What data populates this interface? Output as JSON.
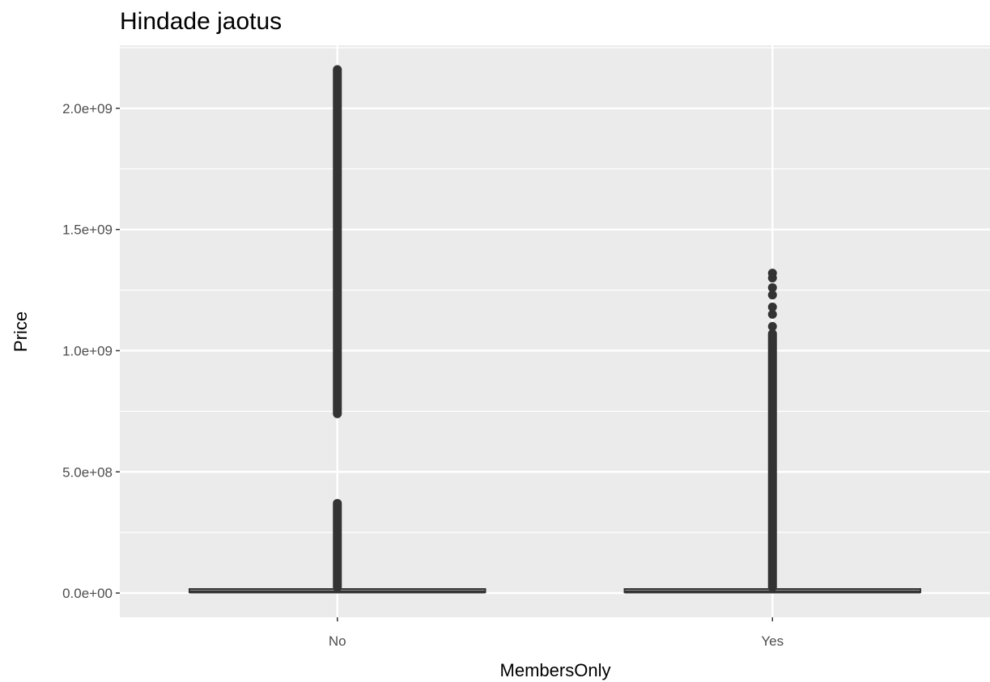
{
  "chart_data": {
    "type": "boxplot",
    "title": "Hindade jaotus",
    "xlabel": "MembersOnly",
    "ylabel": "Price",
    "categories": [
      "No",
      "Yes"
    ],
    "y_ticks": [
      {
        "value": 0,
        "label": "0.0e+00"
      },
      {
        "value": 500000000,
        "label": "5.0e+08"
      },
      {
        "value": 1000000000,
        "label": "1.0e+09"
      },
      {
        "value": 1500000000,
        "label": "1.5e+09"
      },
      {
        "value": 2000000000,
        "label": "2.0e+09"
      }
    ],
    "ylim": [
      -100000000,
      2260000000
    ],
    "boxes": [
      {
        "category": "No",
        "q1": 0,
        "median": 5000000,
        "q3": 10000000,
        "whisker_low": 0,
        "whisker_high": 20000000,
        "outlier_segments": [
          [
            25000000,
            370000000
          ],
          [
            740000000,
            2160000000
          ]
        ]
      },
      {
        "category": "Yes",
        "q1": 0,
        "median": 5000000,
        "q3": 10000000,
        "whisker_low": 0,
        "whisker_high": 20000000,
        "outlier_segments": [
          [
            25000000,
            1070000000
          ]
        ],
        "outliers": [
          1100000000,
          1150000000,
          1180000000,
          1230000000,
          1260000000,
          1300000000,
          1320000000
        ]
      }
    ],
    "grid": true,
    "colors": {
      "panel": "#ebebeb",
      "grid": "#ffffff",
      "box": "#333333",
      "tick_text": "#4d4d4d",
      "tick_mark": "#333333"
    }
  }
}
